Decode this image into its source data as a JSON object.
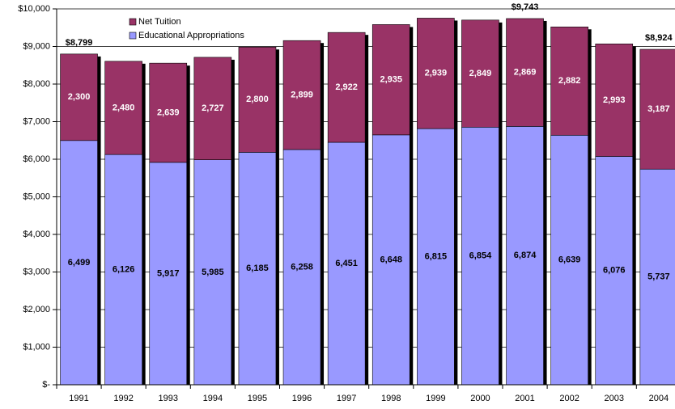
{
  "chart_data": {
    "type": "stacked_bar",
    "categories": [
      "1991",
      "1992",
      "1993",
      "1994",
      "1995",
      "1996",
      "1997",
      "1998",
      "1999",
      "2000",
      "2001",
      "2002",
      "2003",
      "2004"
    ],
    "series": [
      {
        "name": "Educational Appropriations",
        "color": "#9999ff",
        "values": [
          6499,
          6126,
          5917,
          5985,
          6185,
          6258,
          6451,
          6648,
          6815,
          6854,
          6874,
          6639,
          6076,
          5737
        ],
        "value_labels": [
          "6,499",
          "6,126",
          "5,917",
          "5,985",
          "6,185",
          "6,258",
          "6,451",
          "6,648",
          "6,815",
          "6,854",
          "6,874",
          "6,639",
          "6,076",
          "5,737"
        ]
      },
      {
        "name": "Net Tuition",
        "color": "#993366",
        "values": [
          2300,
          2480,
          2639,
          2727,
          2800,
          2899,
          2922,
          2935,
          2939,
          2849,
          2869,
          2882,
          2993,
          3187
        ],
        "value_labels": [
          "2,300",
          "2,480",
          "2,639",
          "2,727",
          "2,800",
          "2,899",
          "2,922",
          "2,935",
          "2,939",
          "2,849",
          "2,869",
          "2,882",
          "2,993",
          "3,187"
        ]
      }
    ],
    "annotations": [
      {
        "x": "1991",
        "text": "$8,799"
      },
      {
        "x": "2001",
        "text": "$9,743"
      },
      {
        "x": "2004",
        "text": "$8,924"
      }
    ],
    "ylim": [
      0,
      10000
    ],
    "yticks": [
      {
        "value": 0,
        "label": "$-"
      },
      {
        "value": 1000,
        "label": "$1,000"
      },
      {
        "value": 2000,
        "label": "$2,000"
      },
      {
        "value": 3000,
        "label": "$3,000"
      },
      {
        "value": 4000,
        "label": "$4,000"
      },
      {
        "value": 5000,
        "label": "$5,000"
      },
      {
        "value": 6000,
        "label": "$6,000"
      },
      {
        "value": 7000,
        "label": "$7,000"
      },
      {
        "value": 8000,
        "label": "$8,000"
      },
      {
        "value": 9000,
        "label": "$9,000"
      },
      {
        "value": 10000,
        "label": "$10,000"
      }
    ],
    "grid": true,
    "legend": "top-left"
  }
}
